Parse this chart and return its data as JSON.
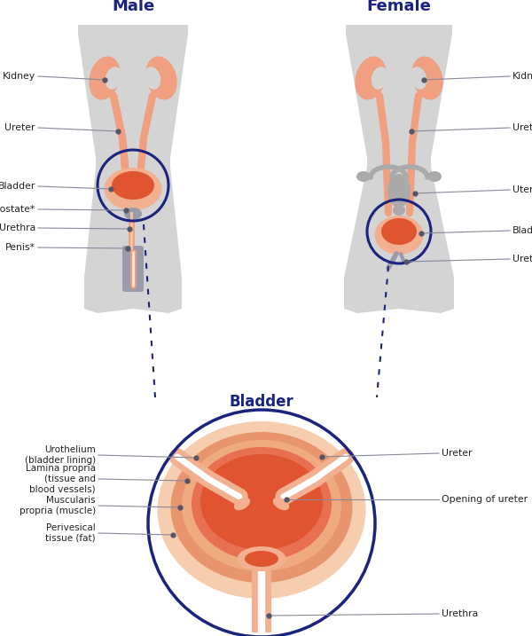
{
  "bg_color": "#ffffff",
  "body_color": "#d4d4d4",
  "kidney_color": "#f0a080",
  "ureter_color": "#f0a080",
  "bladder_fill": "#e05530",
  "bladder_outer": "#f2b090",
  "uterus_color": "#aaaaaa",
  "circle_color": "#1a237e",
  "title_color": "#1a237e",
  "label_color": "#222222",
  "dot_color": "#555566",
  "line_color": "#888899",
  "title_male": "Male",
  "title_female": "Female",
  "title_bladder": "Bladder"
}
